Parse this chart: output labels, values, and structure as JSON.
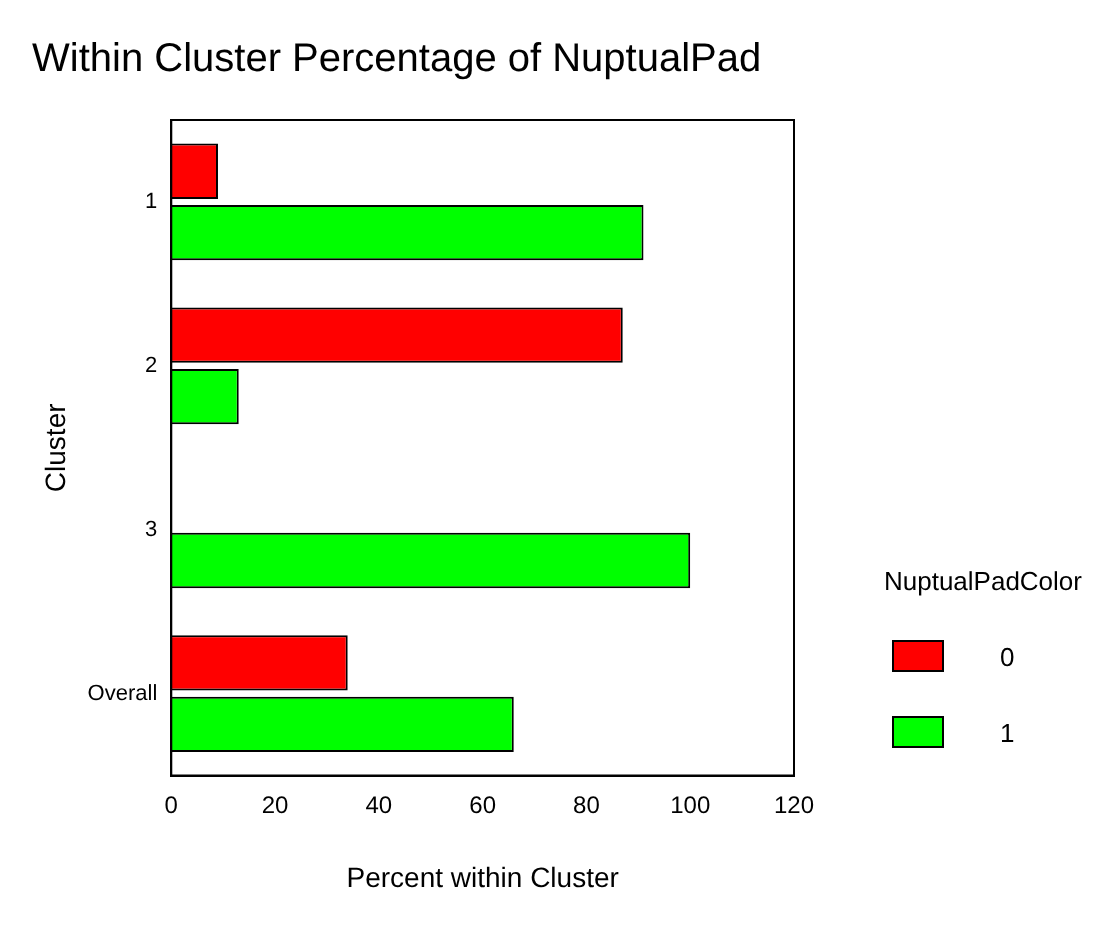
{
  "chart_data": {
    "type": "bar",
    "orientation": "horizontal",
    "title": "Within Cluster Percentage of NuptualPad",
    "xlabel": "Percent within Cluster",
    "ylabel": "Cluster",
    "legend_title": "NuptualPadColor",
    "categories": [
      "1",
      "2",
      "3",
      "Overall"
    ],
    "series": [
      {
        "name": "0",
        "color": "#ff0000",
        "values": [
          9,
          87,
          0,
          34
        ]
      },
      {
        "name": "1",
        "color": "#00ff00",
        "values": [
          91,
          13,
          100,
          66
        ]
      }
    ],
    "xlim": [
      0,
      120
    ],
    "xticks": [
      0,
      20,
      40,
      60,
      80,
      100,
      120
    ],
    "grid": false,
    "legend": "bottom right"
  }
}
